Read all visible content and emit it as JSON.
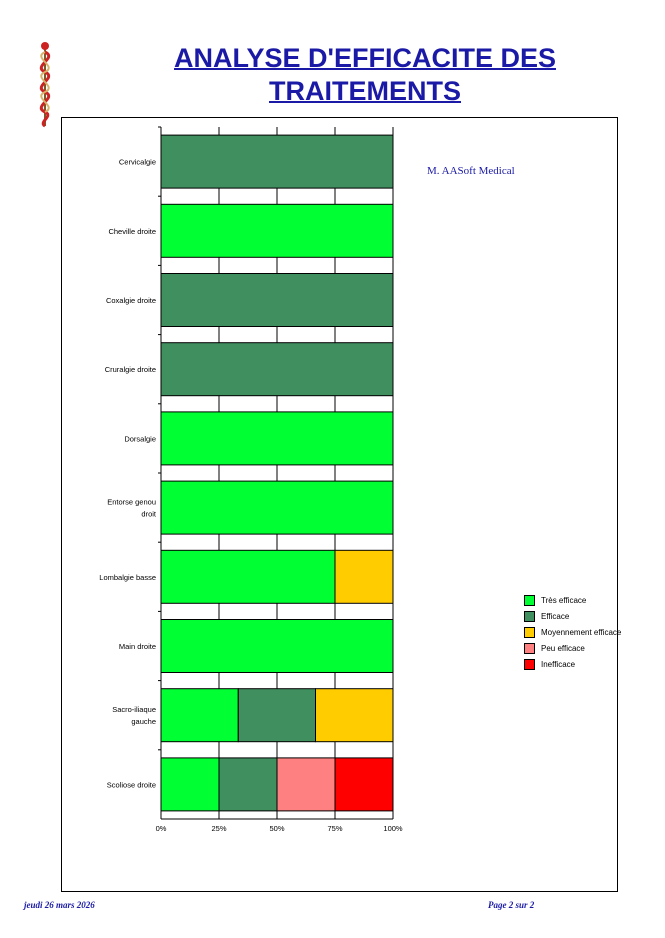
{
  "header": {
    "title": "ANALYSE D'EFFICACITE DES TRAITEMENTS"
  },
  "watermark": {
    "software": "M. AASoft Medical"
  },
  "footer": {
    "date": "jeudi 26 mars 2026",
    "page": "Page 2 sur 2"
  },
  "colors": {
    "tres_efficace": "#00ff33",
    "efficace": "#3f8f5f",
    "moyennement_efficace": "#ffcc00",
    "peu_efficace": "#ff8080",
    "inefficace": "#ff0000",
    "title": "#1a1aa6"
  },
  "chart_data": {
    "type": "bar",
    "orientation": "horizontal",
    "stacked": true,
    "percent": true,
    "categories": [
      "Cervicalgie",
      "Cheville droite",
      "Coxalgie droite",
      "Cruralgie droite",
      "Dorsalgie",
      "Entorse genou droit",
      "Lombalgie basse",
      "Main droite",
      "Sacro-iliaque gauche",
      "Scoliose droite"
    ],
    "series": [
      {
        "name": "Très efficace",
        "color": "#00ff33",
        "values": [
          0,
          100,
          0,
          0,
          100,
          100,
          75,
          100,
          33.3,
          25
        ]
      },
      {
        "name": "Efficace",
        "color": "#3f8f5f",
        "values": [
          100,
          0,
          100,
          100,
          0,
          0,
          0,
          0,
          33.3,
          25
        ]
      },
      {
        "name": "Moyennement efficace",
        "color": "#ffcc00",
        "values": [
          0,
          0,
          0,
          0,
          0,
          0,
          25,
          0,
          33.4,
          0
        ]
      },
      {
        "name": "Peu efficace",
        "color": "#ff8080",
        "values": [
          0,
          0,
          0,
          0,
          0,
          0,
          0,
          0,
          0,
          25
        ]
      },
      {
        "name": "Inefficace",
        "color": "#ff0000",
        "values": [
          0,
          0,
          0,
          0,
          0,
          0,
          0,
          0,
          0,
          25
        ]
      }
    ],
    "x_ticks": [
      "0%",
      "25%",
      "50%",
      "75%",
      "100%"
    ],
    "xlim": [
      0,
      100
    ],
    "grid": true,
    "legend": "right"
  }
}
